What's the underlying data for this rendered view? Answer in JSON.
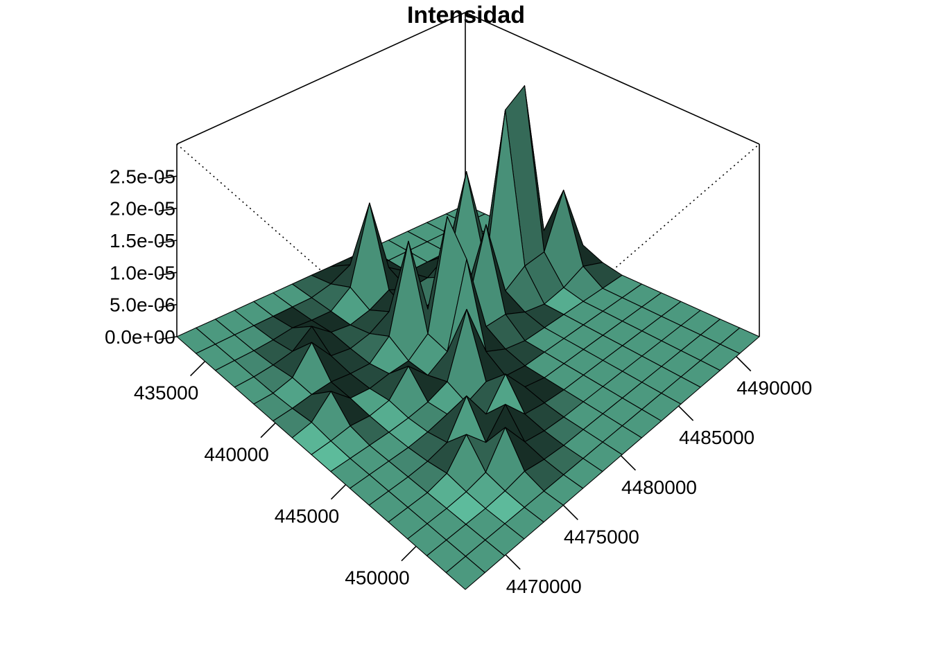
{
  "chart_data": {
    "type": "surface3d",
    "title": "Intensidad",
    "xlabel": "",
    "ylabel": "",
    "zlabel": "",
    "xlim": [
      433000,
      453500
    ],
    "ylim": [
      4466500,
      4492000
    ],
    "zlim": [
      0,
      3e-05
    ],
    "x_ticks": [
      435000,
      440000,
      445000,
      450000
    ],
    "x_tick_labels": [
      "435000",
      "440000",
      "445000",
      "450000"
    ],
    "y_ticks": [
      4470000,
      4475000,
      4480000,
      4485000,
      4490000
    ],
    "y_tick_labels": [
      "4470000",
      "4475000",
      "4480000",
      "4485000",
      "4490000"
    ],
    "z_ticks": [
      0,
      5e-06,
      1e-05,
      1.5e-05,
      2e-05,
      2.5e-05
    ],
    "z_tick_labels": [
      "0.0e+00",
      "5.0e-06",
      "1.0e-05",
      "1.5e-05",
      "2.0e-05",
      "2.5e-05"
    ],
    "grid_size": [
      16,
      16
    ],
    "surface_color": "#7FFFD4",
    "peaks": [
      {
        "x": 439300,
        "y": 4487000,
        "z": 2.7e-05
      },
      {
        "x": 439600,
        "y": 4488400,
        "z": 2.9e-05
      },
      {
        "x": 441200,
        "y": 4483900,
        "z": 1.45e-05
      },
      {
        "x": 441300,
        "y": 4480500,
        "z": 1.95e-05
      },
      {
        "x": 441500,
        "y": 4489900,
        "z": 1.24e-05
      },
      {
        "x": 442700,
        "y": 4479800,
        "z": 1.2e-05
      },
      {
        "x": 438400,
        "y": 4485000,
        "z": 1.75e-05
      },
      {
        "x": 441900,
        "y": 4479400,
        "z": 1.48e-05
      },
      {
        "x": 444500,
        "y": 4479200,
        "z": 1.1e-05
      },
      {
        "x": 435700,
        "y": 4480300,
        "z": 1.38e-05
      },
      {
        "x": 439800,
        "y": 4478600,
        "z": 1.55e-05
      },
      {
        "x": 446800,
        "y": 4478600,
        "z": 4e-06
      },
      {
        "x": 447500,
        "y": 4476100,
        "z": 4.6e-06
      },
      {
        "x": 446400,
        "y": 4475200,
        "z": 6e-06
      },
      {
        "x": 447300,
        "y": 4477700,
        "z": 5e-06
      },
      {
        "x": 448900,
        "y": 4475800,
        "z": 5.5e-06
      },
      {
        "x": 448500,
        "y": 4473200,
        "z": 4.5e-06
      },
      {
        "x": 442000,
        "y": 4475000,
        "z": 4e-06
      },
      {
        "x": 441000,
        "y": 4470000,
        "z": 3.5e-06
      },
      {
        "x": 439000,
        "y": 4472000,
        "z": 4.5e-06
      },
      {
        "x": 436700,
        "y": 4473400,
        "z": 3e-06
      }
    ]
  }
}
